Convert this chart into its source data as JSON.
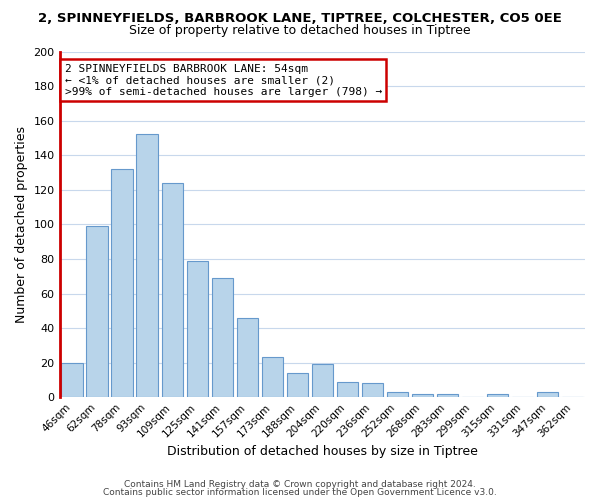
{
  "title1": "2, SPINNEYFIELDS, BARBROOK LANE, TIPTREE, COLCHESTER, CO5 0EE",
  "title2": "Size of property relative to detached houses in Tiptree",
  "xlabel": "Distribution of detached houses by size in Tiptree",
  "ylabel": "Number of detached properties",
  "categories": [
    "46sqm",
    "62sqm",
    "78sqm",
    "93sqm",
    "109sqm",
    "125sqm",
    "141sqm",
    "157sqm",
    "173sqm",
    "188sqm",
    "204sqm",
    "220sqm",
    "236sqm",
    "252sqm",
    "268sqm",
    "283sqm",
    "299sqm",
    "315sqm",
    "331sqm",
    "347sqm",
    "362sqm"
  ],
  "values": [
    20,
    99,
    132,
    152,
    124,
    79,
    69,
    46,
    23,
    14,
    19,
    9,
    8,
    3,
    2,
    2,
    0,
    2,
    0,
    3,
    0
  ],
  "bar_color": "#b8d4ea",
  "bar_edge_color": "#6699cc",
  "highlight_color": "#cc0000",
  "ylim": [
    0,
    200
  ],
  "yticks": [
    0,
    20,
    40,
    60,
    80,
    100,
    120,
    140,
    160,
    180,
    200
  ],
  "annotation_title": "2 SPINNEYFIELDS BARBROOK LANE: 54sqm",
  "annotation_line1": "← <1% of detached houses are smaller (2)",
  "annotation_line2": ">99% of semi-detached houses are larger (798) →",
  "footer1": "Contains HM Land Registry data © Crown copyright and database right 2024.",
  "footer2": "Contains public sector information licensed under the Open Government Licence v3.0.",
  "background_color": "#ffffff",
  "grid_color": "#c8d8ec"
}
